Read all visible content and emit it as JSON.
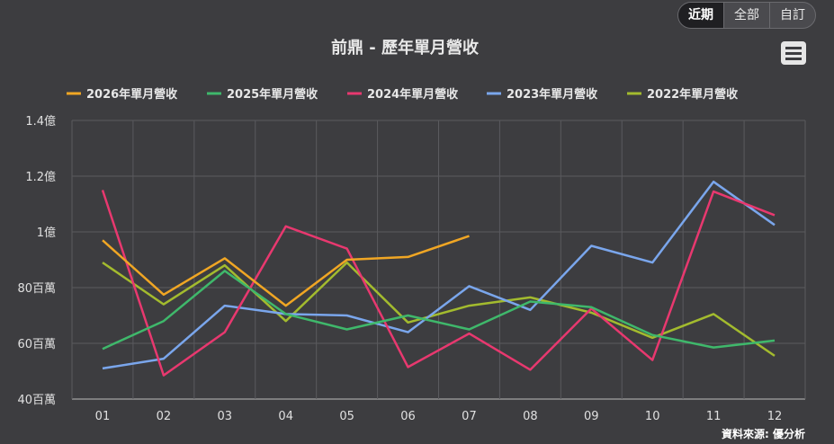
{
  "toolbar": {
    "buttons": [
      {
        "label": "近期",
        "active": true
      },
      {
        "label": "全部",
        "active": false
      },
      {
        "label": "自訂",
        "active": false
      }
    ]
  },
  "menu": {
    "icon": "hamburger-menu-icon"
  },
  "source_text": "資料來源: 優分析",
  "colors": {
    "background": "#3d3d40",
    "grid": "#5a5a5e",
    "text": "#e0e0e0"
  },
  "chart_data": {
    "type": "line",
    "title": "前鼎 - 歷年單月營收",
    "categories": [
      "01",
      "02",
      "03",
      "04",
      "05",
      "06",
      "07",
      "08",
      "09",
      "10",
      "11",
      "12"
    ],
    "y_axis": {
      "min": 40,
      "max": 140,
      "ticks": [
        40,
        60,
        80,
        100,
        120,
        140
      ],
      "tick_labels": [
        "40百萬",
        "60百萬",
        "80百萬",
        "1億",
        "1.2億",
        "1.4億"
      ],
      "unit": "百萬"
    },
    "grid": true,
    "legend_position": "top",
    "series": [
      {
        "name": "2026年單月營收",
        "color": "#f0a624",
        "values": [
          97,
          77.5,
          90.5,
          73.5,
          90,
          91,
          98.5,
          null,
          null,
          null,
          null,
          null
        ]
      },
      {
        "name": "2025年單月營收",
        "color": "#3fb86b",
        "values": [
          58,
          68,
          86,
          70.5,
          65,
          70,
          65,
          75,
          73,
          63,
          58.5,
          61
        ]
      },
      {
        "name": "2024年單月營收",
        "color": "#e8386f",
        "values": [
          115,
          48.5,
          64,
          102,
          94,
          51.5,
          63.5,
          50.5,
          72.5,
          54,
          114.5,
          106
        ]
      },
      {
        "name": "2023年單月營收",
        "color": "#7aa6ec",
        "values": [
          51,
          54.5,
          73.5,
          70.5,
          70,
          64,
          80.5,
          72,
          95,
          89,
          118,
          102.5
        ]
      },
      {
        "name": "2022年單月營收",
        "color": "#a3bb2e",
        "values": [
          89,
          74,
          88,
          68,
          89,
          67.5,
          73.5,
          76.5,
          71,
          62,
          70.5,
          55.5
        ]
      }
    ]
  }
}
